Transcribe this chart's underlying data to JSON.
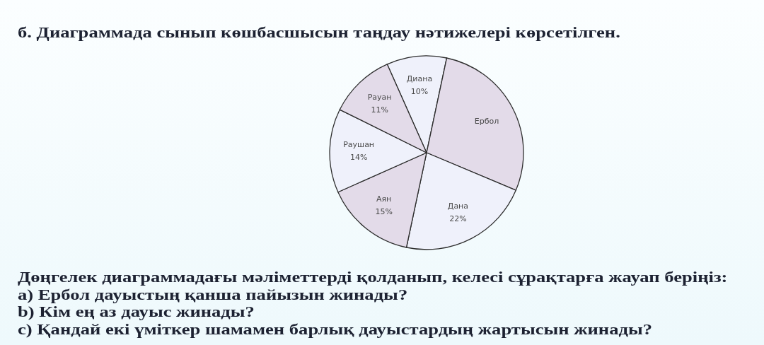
{
  "chart_data": {
    "type": "pie",
    "title": "б. Диаграммада сынып көшбасшысын таңдау нәтижелері көрсетілген.",
    "categories": [
      "Диана",
      "Ербол",
      "Дана",
      "Аян",
      "Раушан",
      "Рауан"
    ],
    "values": [
      10,
      28,
      22,
      15,
      14,
      11
    ],
    "value_labels": [
      "10%",
      null,
      "22%",
      "15%",
      "14%",
      "11%"
    ],
    "colors": [
      "#eff1fb",
      "#e3dbe9",
      "#eff1fb",
      "#e3dbe9",
      "#eff1fb",
      "#e3dbe9"
    ],
    "annotations": [
      "Дөңгелек диаграммадағы мәліметтерді қолданып, келесі сұрақтарға жауап беріңіз:",
      "a) Ербол дауыстың қанша пайызын жинады?",
      "b) Кім ең аз дауыс жинады?",
      "c) Қандай екі үміткер шамамен барлық дауыстардың жартысын жинады?"
    ]
  }
}
